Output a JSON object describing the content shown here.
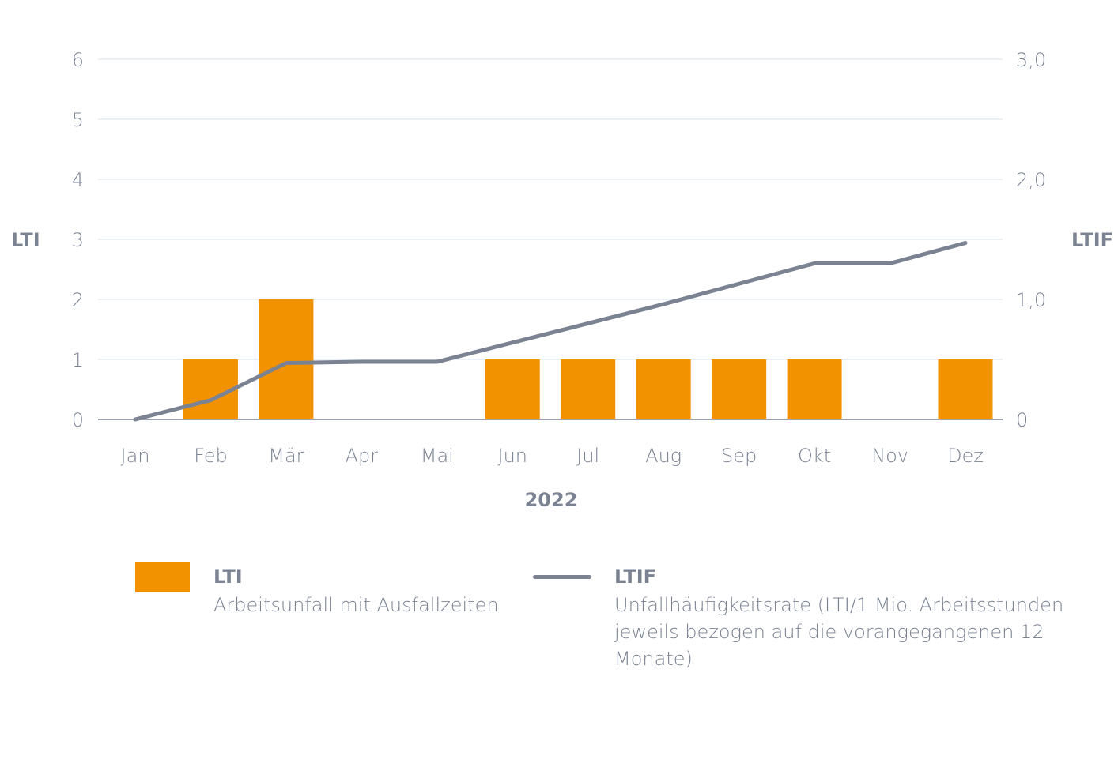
{
  "chart_data": {
    "type": "bar+line",
    "title": "",
    "xlabel": "2022",
    "categories": [
      "Jan",
      "Feb",
      "Mär",
      "Apr",
      "Mai",
      "Jun",
      "Jul",
      "Aug",
      "Sep",
      "Okt",
      "Nov",
      "Dez"
    ],
    "y_left": {
      "label": "LTI",
      "ylim": [
        0,
        6
      ],
      "ticks": [
        "0",
        "1",
        "2",
        "3",
        "4",
        "5",
        "6"
      ]
    },
    "y_right": {
      "label": "LTIF",
      "ylim": [
        0,
        3.0
      ],
      "ticks": [
        {
          "value": 0,
          "label": "0"
        },
        {
          "value": 1.0,
          "label": "1,0"
        },
        {
          "value": 2.0,
          "label": "2,0"
        },
        {
          "value": 3.0,
          "label": "3,0"
        }
      ]
    },
    "grid": true,
    "series": [
      {
        "name": "LTI",
        "type": "bar",
        "axis": "left",
        "color": "#f39200",
        "values": [
          0,
          1,
          2,
          0,
          0,
          1,
          1,
          1,
          1,
          1,
          0,
          1
        ]
      },
      {
        "name": "LTIF",
        "type": "line",
        "axis": "right",
        "color": "#7b8393",
        "values": [
          0,
          0.16,
          0.47,
          0.48,
          0.48,
          0.64,
          0.8,
          0.96,
          1.13,
          1.3,
          1.3,
          1.47
        ]
      }
    ]
  },
  "legend": {
    "bar": {
      "title": "LTI",
      "desc": "Arbeitsunfall mit Ausfallzeiten"
    },
    "line": {
      "title": "LTIF",
      "desc_line1": "Unfallhäufigkeitsrate (LTI/1 Mio. Arbeitsstunden",
      "desc_line2": "jeweils bezogen auf die vorangegangenen 12 Monate)"
    }
  }
}
